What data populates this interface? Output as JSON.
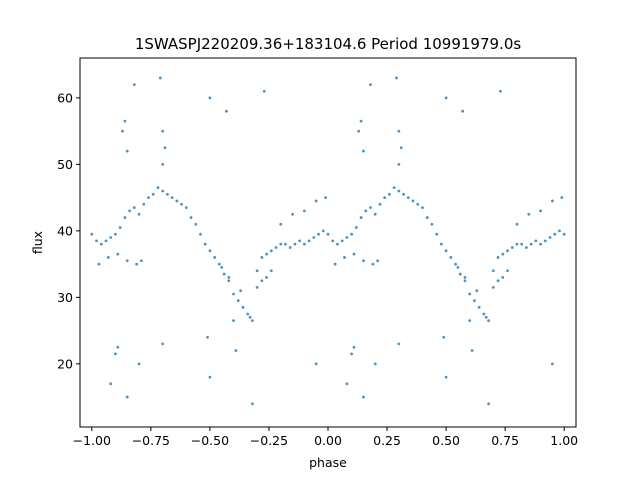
{
  "chart_data": {
    "type": "scatter",
    "title": "1SWASPJ220209.36+183104.6 Period 10991979.0s",
    "xlabel": "phase",
    "ylabel": "flux",
    "xlim": [
      -1.05,
      1.05
    ],
    "ylim": [
      10.5,
      66.0
    ],
    "xticks": [
      -1.0,
      -0.75,
      -0.5,
      -0.25,
      0.0,
      0.25,
      0.5,
      0.75,
      1.0
    ],
    "xtick_labels": [
      "−1.00",
      "−0.75",
      "−0.50",
      "−0.25",
      "0.00",
      "0.25",
      "0.50",
      "0.75",
      "1.00"
    ],
    "yticks": [
      20,
      30,
      40,
      50,
      60
    ],
    "ytick_labels": [
      "20",
      "30",
      "40",
      "50",
      "60"
    ],
    "grid": false,
    "marker_color": "#1f77b4",
    "series": [
      {
        "name": "",
        "values": [
          [
            -1.0,
            39.5
          ],
          [
            -0.98,
            38.5
          ],
          [
            -0.96,
            38.0
          ],
          [
            -0.94,
            38.5
          ],
          [
            -0.92,
            39.0
          ],
          [
            -0.9,
            39.5
          ],
          [
            -0.88,
            40.5
          ],
          [
            -0.86,
            42.0
          ],
          [
            -0.84,
            43.0
          ],
          [
            -0.82,
            43.5
          ],
          [
            -0.8,
            42.5
          ],
          [
            -0.78,
            44.0
          ],
          [
            -0.76,
            45.0
          ],
          [
            -0.74,
            45.5
          ],
          [
            -0.72,
            46.5
          ],
          [
            -0.7,
            46.0
          ],
          [
            -0.68,
            45.5
          ],
          [
            -0.66,
            45.0
          ],
          [
            -0.64,
            44.5
          ],
          [
            -0.62,
            44.0
          ],
          [
            -0.6,
            43.5
          ],
          [
            -0.58,
            42.0
          ],
          [
            -0.56,
            41.0
          ],
          [
            -0.54,
            39.5
          ],
          [
            -0.52,
            38.0
          ],
          [
            -0.5,
            37.0
          ],
          [
            -0.48,
            36.0
          ],
          [
            -0.46,
            35.0
          ],
          [
            -0.44,
            33.5
          ],
          [
            -0.42,
            32.5
          ],
          [
            -0.4,
            30.5
          ],
          [
            -0.38,
            29.5
          ],
          [
            -0.36,
            28.5
          ],
          [
            -0.34,
            27.5
          ],
          [
            -0.32,
            26.5
          ],
          [
            -0.3,
            34.0
          ],
          [
            -0.28,
            36.0
          ],
          [
            -0.26,
            36.5
          ],
          [
            -0.24,
            37.0
          ],
          [
            -0.22,
            37.5
          ],
          [
            -0.2,
            38.0
          ],
          [
            -0.18,
            38.0
          ],
          [
            -0.16,
            37.5
          ],
          [
            -0.14,
            38.0
          ],
          [
            -0.12,
            38.5
          ],
          [
            -0.1,
            38.0
          ],
          [
            -0.08,
            38.5
          ],
          [
            -0.06,
            39.0
          ],
          [
            -0.04,
            39.5
          ],
          [
            -0.02,
            40.0
          ],
          [
            0.0,
            39.5
          ],
          [
            0.02,
            38.5
          ],
          [
            0.04,
            38.0
          ],
          [
            0.06,
            38.5
          ],
          [
            0.08,
            39.0
          ],
          [
            0.1,
            39.5
          ],
          [
            0.12,
            40.5
          ],
          [
            0.14,
            42.0
          ],
          [
            0.16,
            43.0
          ],
          [
            0.18,
            43.5
          ],
          [
            0.2,
            42.5
          ],
          [
            0.22,
            44.0
          ],
          [
            0.24,
            45.0
          ],
          [
            0.26,
            45.5
          ],
          [
            0.28,
            46.5
          ],
          [
            0.3,
            46.0
          ],
          [
            0.32,
            45.5
          ],
          [
            0.34,
            45.0
          ],
          [
            0.36,
            44.5
          ],
          [
            0.38,
            44.0
          ],
          [
            0.4,
            43.5
          ],
          [
            0.42,
            42.0
          ],
          [
            0.44,
            41.0
          ],
          [
            0.46,
            39.5
          ],
          [
            0.48,
            38.0
          ],
          [
            0.5,
            37.0
          ],
          [
            0.52,
            36.0
          ],
          [
            0.54,
            35.0
          ],
          [
            0.56,
            33.5
          ],
          [
            0.58,
            32.5
          ],
          [
            0.6,
            30.5
          ],
          [
            0.62,
            29.5
          ],
          [
            0.64,
            28.5
          ],
          [
            0.66,
            27.5
          ],
          [
            0.68,
            26.5
          ],
          [
            0.7,
            34.0
          ],
          [
            0.72,
            36.0
          ],
          [
            0.74,
            36.5
          ],
          [
            0.76,
            37.0
          ],
          [
            0.78,
            37.5
          ],
          [
            0.8,
            38.0
          ],
          [
            0.82,
            38.0
          ],
          [
            0.84,
            37.5
          ],
          [
            0.86,
            38.0
          ],
          [
            0.88,
            38.5
          ],
          [
            0.9,
            38.0
          ],
          [
            0.92,
            38.5
          ],
          [
            0.94,
            39.0
          ],
          [
            0.96,
            39.5
          ],
          [
            0.98,
            40.0
          ],
          [
            1.0,
            39.5
          ],
          [
            -0.97,
            35.0
          ],
          [
            -0.93,
            36.0
          ],
          [
            -0.89,
            36.5
          ],
          [
            -0.85,
            35.5
          ],
          [
            -0.81,
            35.0
          ],
          [
            -0.79,
            35.5
          ],
          [
            0.03,
            35.0
          ],
          [
            0.07,
            36.0
          ],
          [
            0.11,
            36.5
          ],
          [
            0.15,
            35.5
          ],
          [
            0.19,
            35.0
          ],
          [
            0.21,
            35.5
          ],
          [
            -0.87,
            55.0
          ],
          [
            -0.86,
            56.5
          ],
          [
            -0.85,
            52.0
          ],
          [
            -0.7,
            50.0
          ],
          [
            -0.69,
            52.5
          ],
          [
            -0.7,
            55.0
          ],
          [
            0.13,
            55.0
          ],
          [
            0.14,
            56.5
          ],
          [
            0.15,
            52.0
          ],
          [
            0.3,
            50.0
          ],
          [
            0.31,
            52.5
          ],
          [
            0.3,
            55.0
          ],
          [
            -0.9,
            21.5
          ],
          [
            -0.89,
            22.5
          ],
          [
            -0.92,
            17.0
          ],
          [
            -0.85,
            15.0
          ],
          [
            -0.7,
            23.0
          ],
          [
            -0.8,
            20.0
          ],
          [
            0.1,
            21.5
          ],
          [
            0.11,
            22.5
          ],
          [
            0.08,
            17.0
          ],
          [
            0.15,
            15.0
          ],
          [
            0.3,
            23.0
          ],
          [
            0.2,
            20.0
          ],
          [
            -0.5,
            18.0
          ],
          [
            -0.51,
            24.0
          ],
          [
            -0.39,
            22.0
          ],
          [
            -0.32,
            14.0
          ],
          [
            -0.05,
            20.0
          ],
          [
            0.5,
            18.0
          ],
          [
            0.49,
            24.0
          ],
          [
            0.61,
            22.0
          ],
          [
            0.68,
            14.0
          ],
          [
            0.95,
            20.0
          ],
          [
            -0.45,
            34.5
          ],
          [
            -0.42,
            33.0
          ],
          [
            -0.37,
            31.0
          ],
          [
            -0.33,
            27.0
          ],
          [
            -0.4,
            26.5
          ],
          [
            0.55,
            34.5
          ],
          [
            0.58,
            33.0
          ],
          [
            0.63,
            31.0
          ],
          [
            0.67,
            27.0
          ],
          [
            0.6,
            26.5
          ],
          [
            -0.2,
            41.0
          ],
          [
            -0.15,
            42.5
          ],
          [
            -0.1,
            43.0
          ],
          [
            -0.05,
            44.5
          ],
          [
            -0.01,
            45.0
          ],
          [
            0.8,
            41.0
          ],
          [
            0.85,
            42.5
          ],
          [
            0.9,
            43.0
          ],
          [
            0.95,
            44.5
          ],
          [
            0.99,
            45.0
          ],
          [
            -0.3,
            31.5
          ],
          [
            -0.28,
            32.5
          ],
          [
            -0.26,
            33.0
          ],
          [
            -0.24,
            34.0
          ],
          [
            0.7,
            31.5
          ],
          [
            0.72,
            32.5
          ],
          [
            0.74,
            33.0
          ],
          [
            0.76,
            34.0
          ],
          [
            -0.82,
            62.0
          ],
          [
            -0.71,
            63.0
          ],
          [
            -0.43,
            58.0
          ],
          [
            -0.5,
            60.0
          ],
          [
            -0.27,
            61.0
          ],
          [
            0.18,
            62.0
          ],
          [
            0.29,
            63.0
          ],
          [
            0.57,
            58.0
          ],
          [
            0.5,
            60.0
          ],
          [
            0.73,
            61.0
          ]
        ]
      }
    ]
  }
}
